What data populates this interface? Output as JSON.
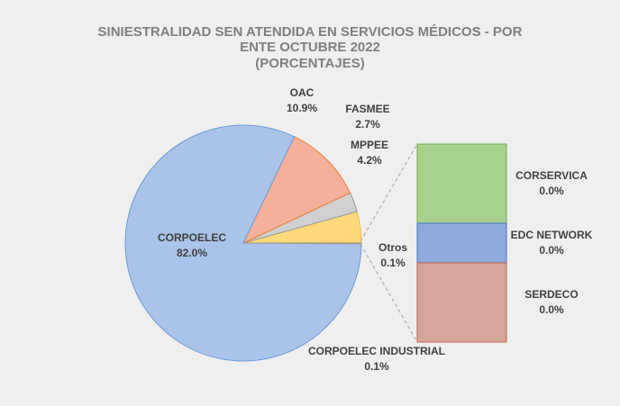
{
  "chart_data": {
    "type": "pie-of-bar",
    "title": "SINIESTRALIDAD SEN ATENDIDA EN SERVICIOS MÉDICOS - POR ENTE OCTUBRE 2022",
    "subtitle": "(PORCENTAJES)",
    "categories": [
      "Otros",
      "MPPEE",
      "FASMEE",
      "OAC",
      "CORPOELEC",
      "CORPOELEC INDUSTRIAL"
    ],
    "values": [
      0.1,
      4.2,
      2.7,
      10.9,
      82.0,
      0.1
    ],
    "value_labels": [
      "0.1%",
      "4.2%",
      "2.7%",
      "10.9%",
      "82.0%",
      "0.1%"
    ],
    "colors": [
      "#44546a",
      "#ffd97a",
      "#d0d0d0",
      "#f4b09a",
      "#a9c4e8",
      "#5b9bd5"
    ],
    "bar": {
      "categories": [
        "CORSERVICA",
        "EDC NETWORK",
        "SERDECO"
      ],
      "values": [
        0.04,
        0.02,
        0.04
      ],
      "value_labels": [
        "0.0%",
        "0.0%",
        "0.0%"
      ],
      "colors": [
        "#a9d18e",
        "#8faadc",
        "#d4a59a"
      ]
    }
  }
}
